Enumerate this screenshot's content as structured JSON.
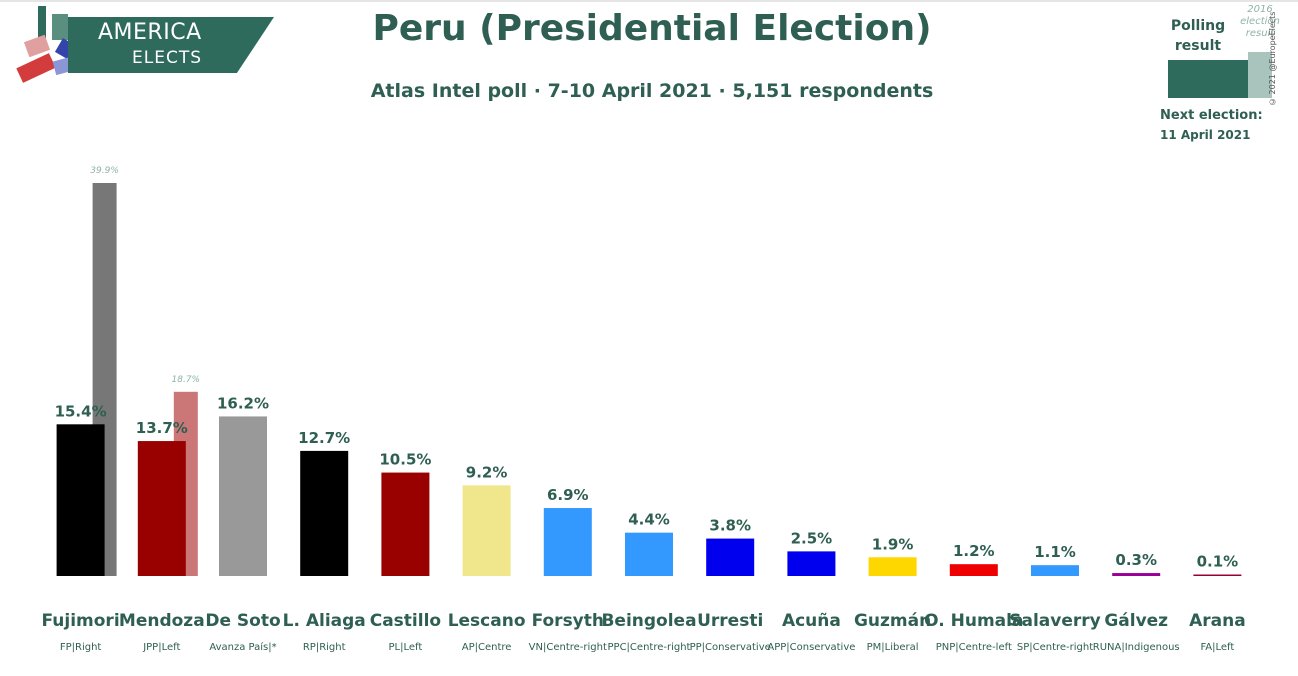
{
  "header": {
    "title": "Peru (Presidential Election)",
    "subtitle": "Atlas Intel poll · 7-10 April 2021 · 5,151 respondents"
  },
  "logo": {
    "line1": "AMERICA",
    "line2": "ELECTS"
  },
  "legend": {
    "polling_label": "Polling result",
    "previous_label": "2016 election result",
    "next_election_label": "Next election:",
    "next_election_date": "11 April 2021"
  },
  "copyright": "© 2021 @EuropeElects",
  "chart_data": {
    "type": "bar",
    "title": "Peru (Presidential Election)",
    "ylim": [
      0,
      40
    ],
    "value_suffix": "%",
    "categories": [
      "Fujimori",
      "Mendoza",
      "De Soto",
      "L. Aliaga",
      "Castillo",
      "Lescano",
      "Forsyth",
      "Beingolea",
      "Urresti",
      "Acuña",
      "Guzmán",
      "O. Humala",
      "Salaverry",
      "Gálvez",
      "Arana"
    ],
    "parties": [
      "FP|Right",
      "JPP|Left",
      "Avanza País|*",
      "RP|Right",
      "PL|Left",
      "AP|Centre",
      "VN|Centre-right",
      "PPC|Centre-right",
      "PP|Conservative",
      "APP|Conservative",
      "PM|Liberal",
      "PNP|Centre-left",
      "SP|Centre-right",
      "RUNA|Indigenous",
      "FA|Left"
    ],
    "colors": [
      "#000000",
      "#990000",
      "#999999",
      "#000000",
      "#990000",
      "#f0e68c",
      "#3399ff",
      "#3399ff",
      "#0000ee",
      "#0000ee",
      "#ffd700",
      "#ee0000",
      "#3399ff",
      "#990099",
      "#990033"
    ],
    "series": [
      {
        "name": "Polling result",
        "values": [
          15.4,
          13.7,
          16.2,
          12.7,
          10.5,
          9.2,
          6.9,
          4.4,
          3.8,
          2.5,
          1.9,
          1.2,
          1.1,
          0.3,
          0.1
        ]
      },
      {
        "name": "2016 election result",
        "values": [
          39.9,
          18.7,
          null,
          null,
          null,
          null,
          null,
          null,
          null,
          null,
          null,
          null,
          null,
          null,
          null
        ],
        "colors": [
          "#777777",
          "#cc7777"
        ]
      }
    ]
  }
}
